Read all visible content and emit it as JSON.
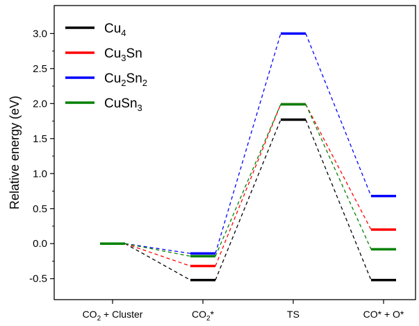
{
  "chart_data": {
    "type": "line",
    "title": "",
    "xlabel": "",
    "ylabel": "Relative energy (eV)",
    "categories": [
      "CO2 + Cluster",
      "CO2*",
      "TS",
      "CO* + O*"
    ],
    "category_labels": [
      {
        "main": "CO",
        "sub": "2",
        "rest": " + Cluster",
        "sup": ""
      },
      {
        "main": "CO",
        "sub": "2",
        "rest": "",
        "sup": "*"
      },
      {
        "main": "TS",
        "sub": "",
        "rest": "",
        "sup": ""
      },
      {
        "main": "CO* + O*",
        "sub": "",
        "rest": "",
        "sup": ""
      }
    ],
    "ylim": [
      -0.8,
      3.4
    ],
    "yticks": [
      -0.5,
      0.0,
      0.5,
      1.0,
      1.5,
      2.0,
      2.5,
      3.0
    ],
    "ytick_labels": [
      "-0.5",
      "0.0",
      "0.5",
      "1.0",
      "1.5",
      "2.0",
      "2.5",
      "3.0"
    ],
    "legend_position": "top-left",
    "series": [
      {
        "name": "Cu4",
        "label_parts": [
          {
            "t": "Cu",
            "sub": false
          },
          {
            "t": "4",
            "sub": true
          }
        ],
        "color": "#000000",
        "values": [
          0.0,
          -0.52,
          1.77,
          -0.52
        ]
      },
      {
        "name": "Cu3Sn",
        "label_parts": [
          {
            "t": "Cu",
            "sub": false
          },
          {
            "t": "3",
            "sub": true
          },
          {
            "t": "Sn",
            "sub": false
          }
        ],
        "color": "#ff0000",
        "values": [
          0.0,
          -0.32,
          1.99,
          0.2
        ]
      },
      {
        "name": "Cu2Sn2",
        "label_parts": [
          {
            "t": "Cu",
            "sub": false
          },
          {
            "t": "2",
            "sub": true
          },
          {
            "t": "Sn",
            "sub": false
          },
          {
            "t": "2",
            "sub": true
          }
        ],
        "color": "#0000ff",
        "values": [
          0.0,
          -0.14,
          3.0,
          0.68
        ]
      },
      {
        "name": "CuSn3",
        "label_parts": [
          {
            "t": "CuSn",
            "sub": false
          },
          {
            "t": "3",
            "sub": true
          }
        ],
        "color": "#008000",
        "values": [
          0.0,
          -0.18,
          1.99,
          -0.08
        ]
      }
    ]
  }
}
